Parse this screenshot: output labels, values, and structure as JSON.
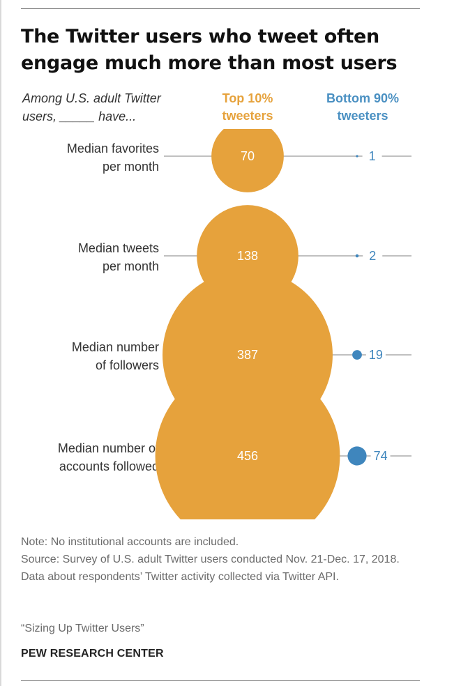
{
  "title": "The Twitter users who tweet often engage much more than most users",
  "subtitle": "Among U.S. adult Twitter users, _____ have...",
  "columns": {
    "top": "Top 10% tweeters",
    "bottom": "Bottom 90% tweeters"
  },
  "colors": {
    "top": "#e6a23c",
    "bottom": "#3f86bd",
    "line": "#9a9a9a",
    "label": "#333333"
  },
  "chart_data": {
    "type": "bubble",
    "xlabel": "",
    "ylabel": "",
    "categories": [
      "Median favorites per month",
      "Median tweets per month",
      "Median number of followers",
      "Median number of accounts followed"
    ],
    "series": [
      {
        "name": "Top 10% tweeters",
        "values": [
          70,
          138,
          387,
          456
        ]
      },
      {
        "name": "Bottom 90% tweeters",
        "values": [
          1,
          2,
          19,
          74
        ]
      }
    ]
  },
  "footer": {
    "note": "Note: No institutional accounts are included.",
    "source": "Source: Survey of U.S. adult Twitter users conducted Nov. 21-Dec. 17, 2018. Data about respondents’ Twitter activity collected via Twitter API.",
    "report": "“Sizing Up Twitter Users”",
    "org": "PEW RESEARCH CENTER"
  }
}
